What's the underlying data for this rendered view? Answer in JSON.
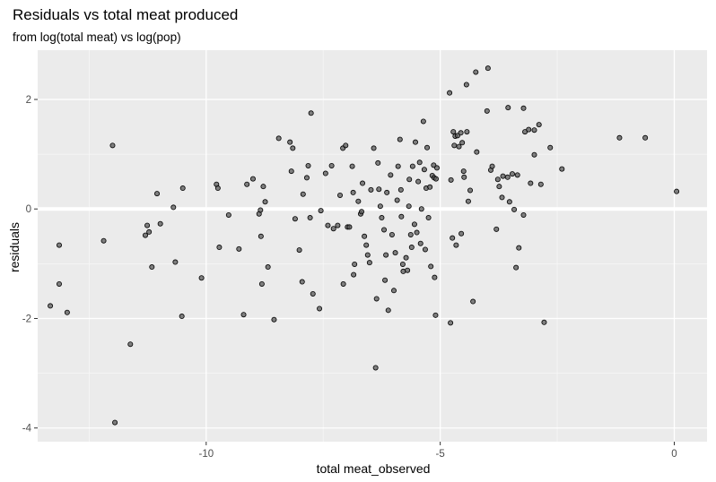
{
  "chart_data": {
    "type": "scatter",
    "title": "Residuals vs total meat produced",
    "subtitle": "from log(total meat) vs log(pop)",
    "xlabel": "total meat_observed",
    "ylabel": "residuals",
    "xlim": [
      -13.6,
      0.7
    ],
    "ylim": [
      -4.25,
      2.9
    ],
    "x_ticks": [
      -10,
      -5,
      0
    ],
    "x_tick_labels": [
      "-10",
      "-5",
      "0"
    ],
    "y_ticks": [
      -4,
      -2,
      0,
      2
    ],
    "y_tick_labels": [
      "-4",
      "-2",
      "0",
      "2"
    ],
    "grid": true,
    "background": "#ebebeb",
    "point_fill": "#595959",
    "point_stroke": "#000000",
    "points": [
      [
        -13.33,
        -1.77
      ],
      [
        -13.14,
        -0.66
      ],
      [
        -13.14,
        -1.37
      ],
      [
        -12.97,
        -1.89
      ],
      [
        -12.19,
        -0.58
      ],
      [
        -12.0,
        1.16
      ],
      [
        -11.95,
        -3.9
      ],
      [
        -11.62,
        -2.47
      ],
      [
        -11.3,
        -0.48
      ],
      [
        -11.26,
        -0.3
      ],
      [
        -11.22,
        -0.42
      ],
      [
        -11.16,
        -1.06
      ],
      [
        -11.05,
        0.28
      ],
      [
        -10.98,
        -0.27
      ],
      [
        -10.7,
        0.03
      ],
      [
        -10.66,
        -0.97
      ],
      [
        -10.5,
        0.38
      ],
      [
        -10.52,
        -1.96
      ],
      [
        -10.1,
        -1.26
      ],
      [
        -9.78,
        0.45
      ],
      [
        -9.75,
        0.38
      ],
      [
        -9.72,
        -0.7
      ],
      [
        -9.52,
        -0.11
      ],
      [
        -9.3,
        -0.73
      ],
      [
        -9.2,
        -1.93
      ],
      [
        -9.13,
        0.45
      ],
      [
        -9.0,
        0.55
      ],
      [
        -8.87,
        -0.09
      ],
      [
        -8.84,
        -0.02
      ],
      [
        -8.83,
        -0.5
      ],
      [
        -8.81,
        -1.37
      ],
      [
        -8.78,
        0.41
      ],
      [
        -8.74,
        0.13
      ],
      [
        -8.68,
        -1.06
      ],
      [
        -8.55,
        -2.02
      ],
      [
        -8.45,
        1.29
      ],
      [
        -8.21,
        1.22
      ],
      [
        -8.18,
        0.69
      ],
      [
        -8.15,
        1.11
      ],
      [
        -8.1,
        -0.18
      ],
      [
        -8.01,
        -0.75
      ],
      [
        -7.95,
        -1.33
      ],
      [
        -7.93,
        0.27
      ],
      [
        -7.82,
        0.79
      ],
      [
        -7.85,
        0.57
      ],
      [
        -7.76,
        1.75
      ],
      [
        -7.78,
        -0.16
      ],
      [
        -7.72,
        -1.55
      ],
      [
        -7.58,
        -1.82
      ],
      [
        -7.55,
        -0.03
      ],
      [
        -7.45,
        0.65
      ],
      [
        -7.4,
        -0.3
      ],
      [
        -7.32,
        0.79
      ],
      [
        -7.28,
        -0.36
      ],
      [
        -7.19,
        -0.3
      ],
      [
        -7.14,
        0.25
      ],
      [
        -7.08,
        1.11
      ],
      [
        -7.02,
        1.16
      ],
      [
        -7.07,
        -1.37
      ],
      [
        -6.98,
        -0.33
      ],
      [
        -6.94,
        -0.33
      ],
      [
        -6.88,
        0.78
      ],
      [
        -6.86,
        0.3
      ],
      [
        -6.85,
        -1.2
      ],
      [
        -6.83,
        -1.01
      ],
      [
        -6.75,
        0.14
      ],
      [
        -6.7,
        -0.09
      ],
      [
        -6.68,
        -0.05
      ],
      [
        -6.66,
        0.47
      ],
      [
        -6.62,
        -0.5
      ],
      [
        -6.58,
        -0.66
      ],
      [
        -6.55,
        -0.84
      ],
      [
        -6.51,
        -0.98
      ],
      [
        -6.48,
        0.35
      ],
      [
        -6.42,
        1.11
      ],
      [
        -6.38,
        -2.9
      ],
      [
        -6.36,
        -1.64
      ],
      [
        -6.33,
        0.84
      ],
      [
        -6.31,
        0.36
      ],
      [
        -6.28,
        0.05
      ],
      [
        -6.25,
        -0.16
      ],
      [
        -6.2,
        -0.38
      ],
      [
        -6.18,
        -1.3
      ],
      [
        -6.16,
        -0.84
      ],
      [
        -6.14,
        0.3
      ],
      [
        -6.11,
        -1.85
      ],
      [
        -6.06,
        0.62
      ],
      [
        -6.03,
        -0.47
      ],
      [
        -5.99,
        -1.49
      ],
      [
        -5.96,
        -0.8
      ],
      [
        -5.92,
        0.16
      ],
      [
        -5.9,
        0.78
      ],
      [
        -5.86,
        1.27
      ],
      [
        -5.84,
        0.35
      ],
      [
        -5.83,
        -0.14
      ],
      [
        -5.8,
        -1.01
      ],
      [
        -5.79,
        -1.14
      ],
      [
        -5.73,
        -0.89
      ],
      [
        -5.7,
        -1.12
      ],
      [
        -5.67,
        0.05
      ],
      [
        -5.66,
        0.54
      ],
      [
        -5.63,
        -0.47
      ],
      [
        -5.61,
        -0.7
      ],
      [
        -5.59,
        0.78
      ],
      [
        -5.55,
        -0.28
      ],
      [
        -5.53,
        1.22
      ],
      [
        -5.5,
        -0.43
      ],
      [
        -5.47,
        0.5
      ],
      [
        -5.44,
        0.85
      ],
      [
        -5.42,
        -0.63
      ],
      [
        -5.4,
        0.0
      ],
      [
        -5.36,
        1.6
      ],
      [
        -5.34,
        0.72
      ],
      [
        -5.32,
        -0.74
      ],
      [
        -5.3,
        0.38
      ],
      [
        -5.28,
        1.12
      ],
      [
        -5.25,
        -0.16
      ],
      [
        -5.22,
        0.4
      ],
      [
        -5.2,
        -1.05
      ],
      [
        -5.17,
        0.61
      ],
      [
        -5.14,
        0.8
      ],
      [
        -5.13,
        0.57
      ],
      [
        -5.12,
        -1.25
      ],
      [
        -5.1,
        -1.94
      ],
      [
        -5.09,
        0.55
      ],
      [
        -5.07,
        0.75
      ],
      [
        -4.8,
        2.12
      ],
      [
        -4.77,
        0.53
      ],
      [
        -4.78,
        -2.08
      ],
      [
        -4.74,
        -0.53
      ],
      [
        -4.72,
        1.41
      ],
      [
        -4.7,
        1.16
      ],
      [
        -4.68,
        1.33
      ],
      [
        -4.66,
        -0.66
      ],
      [
        -4.63,
        1.34
      ],
      [
        -4.6,
        1.14
      ],
      [
        -4.56,
        1.39
      ],
      [
        -4.55,
        -0.45
      ],
      [
        -4.53,
        1.21
      ],
      [
        -4.5,
        0.69
      ],
      [
        -4.49,
        0.58
      ],
      [
        -4.44,
        2.27
      ],
      [
        -4.43,
        1.41
      ],
      [
        -4.4,
        0.14
      ],
      [
        -4.36,
        0.34
      ],
      [
        -4.3,
        -1.69
      ],
      [
        -4.24,
        2.5
      ],
      [
        -4.22,
        1.04
      ],
      [
        -4.0,
        1.79
      ],
      [
        -3.98,
        2.57
      ],
      [
        -3.92,
        0.71
      ],
      [
        -3.89,
        0.78
      ],
      [
        -3.8,
        -0.37
      ],
      [
        -3.77,
        0.54
      ],
      [
        -3.74,
        0.41
      ],
      [
        -3.66,
        0.6
      ],
      [
        -3.68,
        0.21
      ],
      [
        -3.55,
        1.85
      ],
      [
        -3.56,
        0.58
      ],
      [
        -3.52,
        0.13
      ],
      [
        -3.46,
        0.64
      ],
      [
        -3.42,
        -0.01
      ],
      [
        -3.35,
        0.62
      ],
      [
        -3.32,
        -0.71
      ],
      [
        -3.38,
        -1.07
      ],
      [
        -3.22,
        1.84
      ],
      [
        -3.22,
        -0.11
      ],
      [
        -3.19,
        1.41
      ],
      [
        -3.11,
        1.45
      ],
      [
        -3.07,
        0.47
      ],
      [
        -2.99,
        1.44
      ],
      [
        -2.99,
        0.99
      ],
      [
        -2.89,
        1.54
      ],
      [
        -2.85,
        0.45
      ],
      [
        -2.78,
        -2.07
      ],
      [
        -2.65,
        1.12
      ],
      [
        -2.4,
        0.73
      ],
      [
        -1.17,
        1.3
      ],
      [
        -0.62,
        1.3
      ],
      [
        0.05,
        0.32
      ]
    ]
  }
}
